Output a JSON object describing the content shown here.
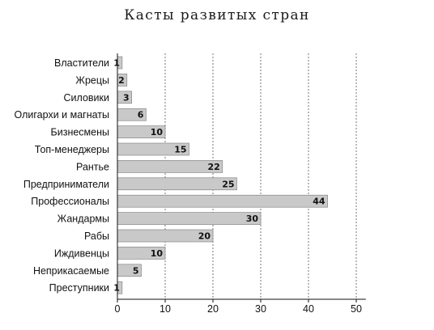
{
  "chart_data": {
    "type": "bar",
    "orientation": "horizontal",
    "title": "Касты развитых стран",
    "categories": [
      "Властители",
      "Жрецы",
      "Силовики",
      "Олигархи и магнаты",
      "Бизнесмены",
      "Топ-менеджеры",
      "Рантье",
      "Предприниматели",
      "Профессионалы",
      "Жандармы",
      "Рабы",
      "Иждивенцы",
      "Неприкасаемые",
      "Преступники"
    ],
    "values": [
      1,
      2,
      3,
      6,
      10,
      15,
      22,
      25,
      44,
      30,
      20,
      10,
      5,
      1
    ],
    "value_labels": [
      "1",
      "2",
      "3",
      "6",
      "10",
      "15",
      "22",
      "25",
      "44",
      "30",
      "20",
      "10",
      "5",
      "1"
    ],
    "xlim": [
      0,
      52
    ],
    "xticks": [
      0,
      10,
      20,
      30,
      40,
      50
    ],
    "xtick_labels": [
      "0",
      "10",
      "20",
      "30",
      "40",
      "50"
    ],
    "grid": "vertical-dashed",
    "colors": {
      "bar": "#c9c9c9",
      "bar_edge": "#7a7a7a",
      "grid": "#555555"
    }
  }
}
